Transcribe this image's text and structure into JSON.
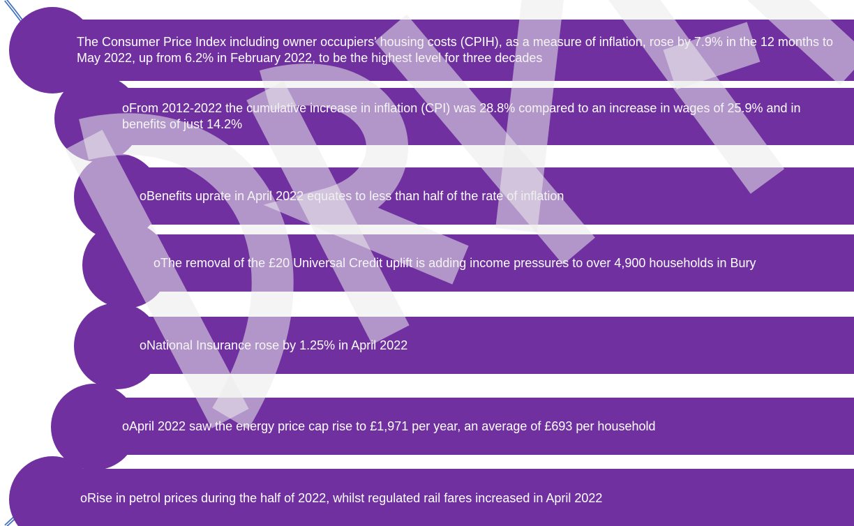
{
  "items": [
    "The Consumer Price Index including owner occupiers' housing costs (CPIH), as a measure of inflation, rose by 7.9% in the 12 months to May 2022, up from 6.2% in February 2022, to be the highest level for three decades",
    "oFrom 2012-2022 the cumulative increase in inflation (CPI) was 28.8% compared to an increase in wages of 25.9% and in benefits of just 14.2%",
    "oBenefits uprate in April 2022 equates to less than half of the rate of inflation",
    "oThe removal of the £20 Universal Credit uplift is adding income pressures to over 4,900 households in Bury",
    "oNational Insurance rose by 1.25% in April 2022",
    "oApril 2022 saw the energy price cap rise to £1,971 per year, an average of £693 per household",
    "oRise in petrol prices during the half of 2022, whilst regulated rail fares increased in April 2022"
  ]
}
